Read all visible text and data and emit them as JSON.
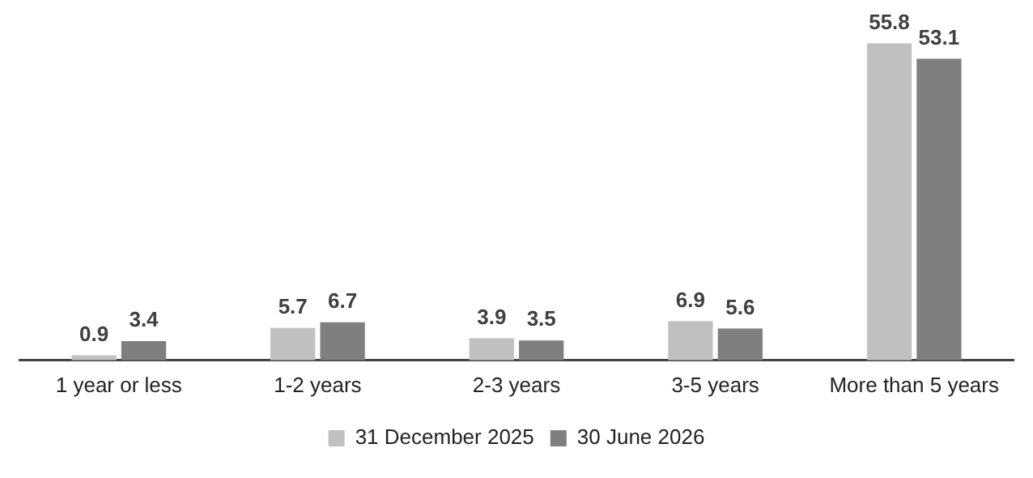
{
  "chart_data": {
    "type": "bar",
    "categories": [
      "1 year or less",
      "1-2 years",
      "2-3 years",
      "3-5 years",
      "More than 5 years"
    ],
    "series": [
      {
        "name": "31 December 2025",
        "color": "#c0c0c0",
        "values": [
          0.9,
          5.7,
          3.9,
          6.9,
          55.8
        ]
      },
      {
        "name": "30 June 2026",
        "color": "#7f7f7f",
        "values": [
          3.4,
          6.7,
          3.5,
          5.6,
          53.1
        ]
      }
    ],
    "data_labels": true,
    "legend": "bottom",
    "grid": false
  }
}
